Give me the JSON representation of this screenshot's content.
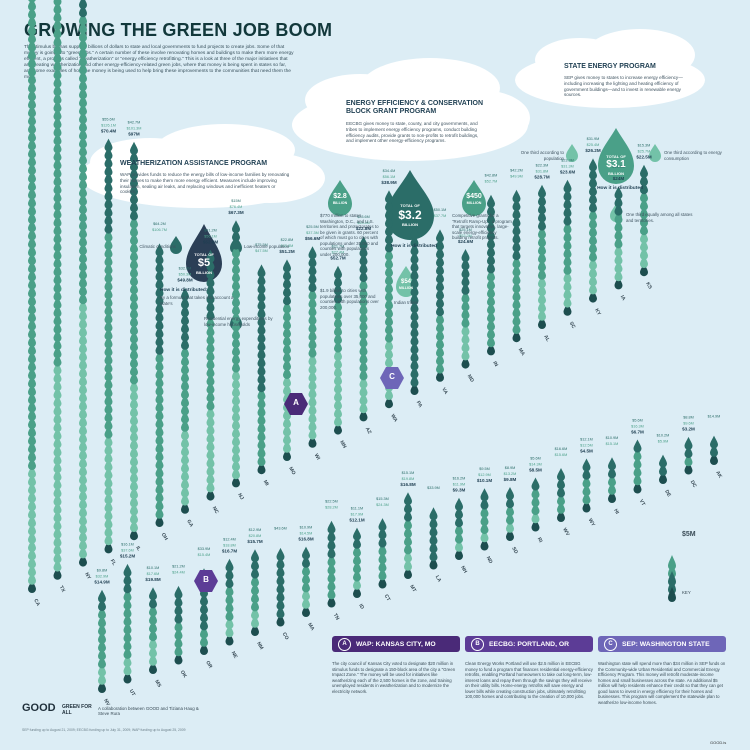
{
  "title": "GROWING THE GREEN JOB BOOM",
  "intro": "The stimulus bill has supplied billions of dollars to state and local governments to fund projects to create jobs. Some of that money is going into \"green jobs.\" A certain number of these involve renovating homes and buildings to make them more energy efficient, a process called \"weatherization\" or \"energy efficiency retrofitting.\" This is a look at three of the major initiatives that are creating weatherization and other energy-efficiency-related green jobs, where that money is being spent in states so far, and some examples of how the money is being used to help bring these improvements to the communities that need them the most.",
  "wap": {
    "title": "WEATHERIZATION ASSISTANCE PROGRAM",
    "text": "WAP provides funds to reduce the energy bills of low-income families by renovating their homes to make them more energy efficient. Measures include improving insulation, sealing air leaks, and replacing windows and inefficient heaters or coolers.",
    "climatic": "Climatic conditions",
    "low_income": "Low-income population",
    "total_top": "TOTAL OF",
    "total_value": "$5",
    "total_unit": "BILLION",
    "distributed": "How it is distributed:",
    "distributed_text": "By a formula that takes into account a state's",
    "residential": "Residential energy expenditures by low-income households"
  },
  "eecbg": {
    "title": "ENERGY EFFICIENCY & CONSERVATION BLOCK GRANT PROGRAM",
    "text": "EECBG gives money to state, county, and city governments, and tribes to implement energy efficiency programs, conduct building efficiency audits, provide grants to non-profits to retrofit buildings, and implement other energy-efficiency programs.",
    "amount_left": "$2.8",
    "amount_left_unit": "BILLION",
    "total_top": "TOTAL OF",
    "total_value": "$3.2",
    "total_unit": "BILLION",
    "amount_right": "$450",
    "amount_right_unit": "MILLION",
    "left_text": "$770 million to states, Washington, D.C., and U.S. territories and protectorates to be given in grants. 60 percent of which must go to cities with populations under 35,000 and counties with populations under 200,000.",
    "left_text2": "$1.9 billion to cities with populations over 35,000 and counties with populations over 200,000.",
    "distributed": "How it is distributed",
    "right_text": "Competitive grants for a \"Retrofit Ramp-Up\": a program that targets innovative, large-scale energy-efficiency building retrofit projects.",
    "tribes_value": "$54",
    "tribes_unit": "MILLION",
    "tribes_label": "Indian tribes"
  },
  "sep": {
    "title": "STATE ENERGY PROGRAM",
    "text": "SEP gives money to states to increase energy efficiency—including increasing the lighting and heating efficiency of government buildings—and to invest in renewable energy sources.",
    "third_pop": "One third according to population",
    "third_consumption": "One third according to energy consumption",
    "total_top": "TOTAL OF",
    "total_value": "$3.1",
    "total_unit": "BILLION",
    "distributed": "How it is distributed",
    "third_equal": "One third equally among all states and territories."
  },
  "key": {
    "value": "$5M",
    "label": "KEY"
  },
  "panels": [
    {
      "badge": "A",
      "title": "WAP: KANSAS CITY, MO",
      "color": "#4a2a78",
      "text": "The city council of Kansas City voted to designate $20 million in stimulus funds to designate a 150-block area of the city a \"Green Impact Zone.\" The money will be used for initiatives like weatherizing each of the 2,500 homes in the zone, and training unemployed residents in weatherization and to modernize the electricity network."
    },
    {
      "badge": "B",
      "title": "EECBG: PORTLAND, OR",
      "color": "#5c3c96",
      "text": "Clean Energy Works Portland will use $2.5 million in EECBG money to fund a program that finances residential energy-efficiency retrofits, enabling Portland homeowners to take out long-term, low-interest loans and repay them through the savings they will receive on their utility bills. Home-energy retrofits will save energy and lower bills while creating construction jobs, ultimately retrofitting 100,000 homes and contributing to the creation of 10,000 jobs."
    },
    {
      "badge": "C",
      "title": "SEP: WASHINGTON STATE",
      "color": "#6e66b8",
      "text": "Washington state will spend more than $34 million in SEP funds on the Community-wide Urban Residential and Commercial Energy Efficiency Program. This money will retrofit moderate-income homes and small businesses across the state. An additional $5 million will help residents enhance their credit so that they can get good loans to invest in energy efficiency for their homes and businesses. This program will complement the statewide plan to weatherize low-income homes."
    }
  ],
  "footer": {
    "good": "GOOD",
    "gfa": "GREEN FOR ALL",
    "credit": "A collaboration between GOOD and Tiziana Haug & Steve Rura",
    "source": "SEP funding up to August 21, 2009; EECBG funding up to July 31, 2009; WAP funding up to August 25, 2009",
    "url": "GOOD.is"
  },
  "colors": {
    "wap": "#2b6d68",
    "eecbg": "#4aa088",
    "sep": "#73c2a8",
    "dark": "#1d4e4f",
    "badge": "#4a2a78"
  },
  "chart_data": {
    "type": "bar",
    "title": "",
    "series": [
      {
        "name": "WAP"
      },
      {
        "name": "EECBG"
      },
      {
        "name": "SEP"
      }
    ],
    "columns": [
      {
        "state": "CA",
        "labels": [
          "$85.8M",
          "$351.7M",
          "$74.3M"
        ]
      },
      {
        "state": "TX",
        "labels": [
          "$87.9M",
          "$269.9M",
          "$130.8M"
        ]
      },
      {
        "state": "NY",
        "labels": [
          "$46.2M",
          "$175.1M",
          "$157.9M"
        ]
      },
      {
        "state": "FL",
        "labels": [
          "$55.6M",
          "$126.1M",
          "$70.4M"
        ]
      },
      {
        "state": "IL",
        "labels": [
          "$42.7M",
          "$101.3M",
          "$97M"
        ]
      },
      {
        "state": "OH",
        "labels": [
          "$64.2M",
          "$106.7M",
          ""
        ]
      },
      {
        "state": "GA",
        "labels": [
          "$32.8M",
          "$50.3M",
          "$49.8M"
        ]
      },
      {
        "state": "NC",
        "labels": [
          "$41.2M",
          "$56.1M",
          "$52.8M"
        ]
      },
      {
        "state": "NJ",
        "labels": [
          "$15M",
          "$76.4M",
          "$67.3M"
        ]
      },
      {
        "state": "MI",
        "labels": [
          "$75.5M",
          "$47.5M",
          ""
        ]
      },
      {
        "state": "MO",
        "labels": [
          "$22.8M",
          "$43.8M",
          "$51.2M"
        ]
      },
      {
        "state": "WI",
        "labels": [
          "$25.5M",
          "$37.3M",
          "$56.6M"
        ]
      },
      {
        "state": "MN",
        "labels": [
          "$21.7M",
          "$27.4M",
          "$52.7M"
        ]
      },
      {
        "state": "AZ",
        "labels": [
          "$23.6M",
          "$63.4M",
          "$22.8M"
        ]
      },
      {
        "state": "WA",
        "labels": [
          "$34.4M",
          "$56.1M",
          "$38.9M"
        ]
      },
      {
        "state": "PA",
        "labels": [
          "$102.3M",
          "",
          ""
        ]
      },
      {
        "state": "VA",
        "labels": [
          "$50.1M",
          "$37.7M",
          ""
        ]
      },
      {
        "state": "MD",
        "labels": [
          "$25.1M",
          "$22.2M",
          "$24.6M"
        ]
      },
      {
        "state": "IN",
        "labels": [
          "$42.8M",
          "$52.7M",
          ""
        ]
      },
      {
        "state": "MA",
        "labels": [
          "$42.2M",
          "$49.9M",
          ""
        ]
      },
      {
        "state": "AL",
        "labels": [
          "$22.3M",
          "$31.8M",
          "$28.7M"
        ]
      },
      {
        "state": "SC",
        "labels": [
          "$23.3M",
          "$31.3M",
          "$23.6M"
        ]
      },
      {
        "state": "KY",
        "labels": [
          "$31.9M",
          "$25.4M",
          "$26.2M"
        ]
      },
      {
        "state": "IA",
        "labels": [
          "$15.3M",
          "$21.9M",
          "$24M"
        ]
      },
      {
        "state": "KS",
        "labels": [
          "$15.3M",
          "$25.7M",
          "$22.5M"
        ]
      },
      {
        "state": "NV",
        "labels": [
          "$9.8M",
          "$32.9M",
          "$14.9M"
        ]
      },
      {
        "state": "UT",
        "labels": [
          "$16.1M",
          "$37.6M",
          "$15.2M"
        ]
      },
      {
        "state": "MS",
        "labels": [
          "$10.1M",
          "$17.6M",
          "$19.8M"
        ]
      },
      {
        "state": "OK",
        "labels": [
          "$21.2M",
          "$24.4M",
          ""
        ]
      },
      {
        "state": "OR",
        "labels": [
          "$33.9M",
          "$15.4M",
          ""
        ]
      },
      {
        "state": "NE",
        "labels": [
          "$12.4M",
          "$18.8M",
          "$16.7M"
        ]
      },
      {
        "state": "NM",
        "labels": [
          "$12.9M",
          "$20.8M",
          "$15.7M"
        ]
      },
      {
        "state": "CO",
        "labels": [
          "$43.6M",
          "",
          ""
        ]
      },
      {
        "state": "MA2",
        "labels": [
          "$10.9M",
          "$14.5M",
          "$16.8M"
        ]
      },
      {
        "state": "TN",
        "labels": [
          "$22.5M",
          "$28.2M",
          ""
        ]
      },
      {
        "state": "ID",
        "labels": [
          "$11.1M",
          "$17.9M",
          "$12.1M"
        ]
      },
      {
        "state": "CT",
        "labels": [
          "$15.3M",
          "$24.3M",
          ""
        ]
      },
      {
        "state": "MT",
        "labels": [
          "$15.1M",
          "$19.8M",
          "$16.8M"
        ]
      },
      {
        "state": "LA",
        "labels": [
          "$33.9M",
          "",
          ""
        ]
      },
      {
        "state": "NH",
        "labels": [
          "$16.2M",
          "$11.9M",
          "$9.3M"
        ]
      },
      {
        "state": "ND",
        "labels": [
          "$9.5M",
          "$12.9M",
          "$10.1M"
        ]
      },
      {
        "state": "SD",
        "labels": [
          "$8.9M",
          "$13.2M",
          "$9.8M"
        ]
      },
      {
        "state": "RI",
        "labels": [
          "$5.6M",
          "$14.3M",
          "$8.5M"
        ]
      },
      {
        "state": "WV",
        "labels": [
          "$16.6M",
          "$15.6M",
          ""
        ]
      },
      {
        "state": "WY",
        "labels": [
          "$12.1M",
          "$12.5M",
          "$4.5M"
        ]
      },
      {
        "state": "HI",
        "labels": [
          "$10.9M",
          "$15.1M",
          ""
        ]
      },
      {
        "state": "VT",
        "labels": [
          "$5.6M",
          "$16.3M",
          "$6.7M"
        ]
      },
      {
        "state": "DE",
        "labels": [
          "$10.2M",
          "$5.9M",
          ""
        ]
      },
      {
        "state": "DC",
        "labels": [
          "$8.8M",
          "$9.6M",
          "$3.2M"
        ]
      },
      {
        "state": "AK",
        "labels": [
          "$14.9M",
          "",
          ""
        ]
      }
    ]
  }
}
